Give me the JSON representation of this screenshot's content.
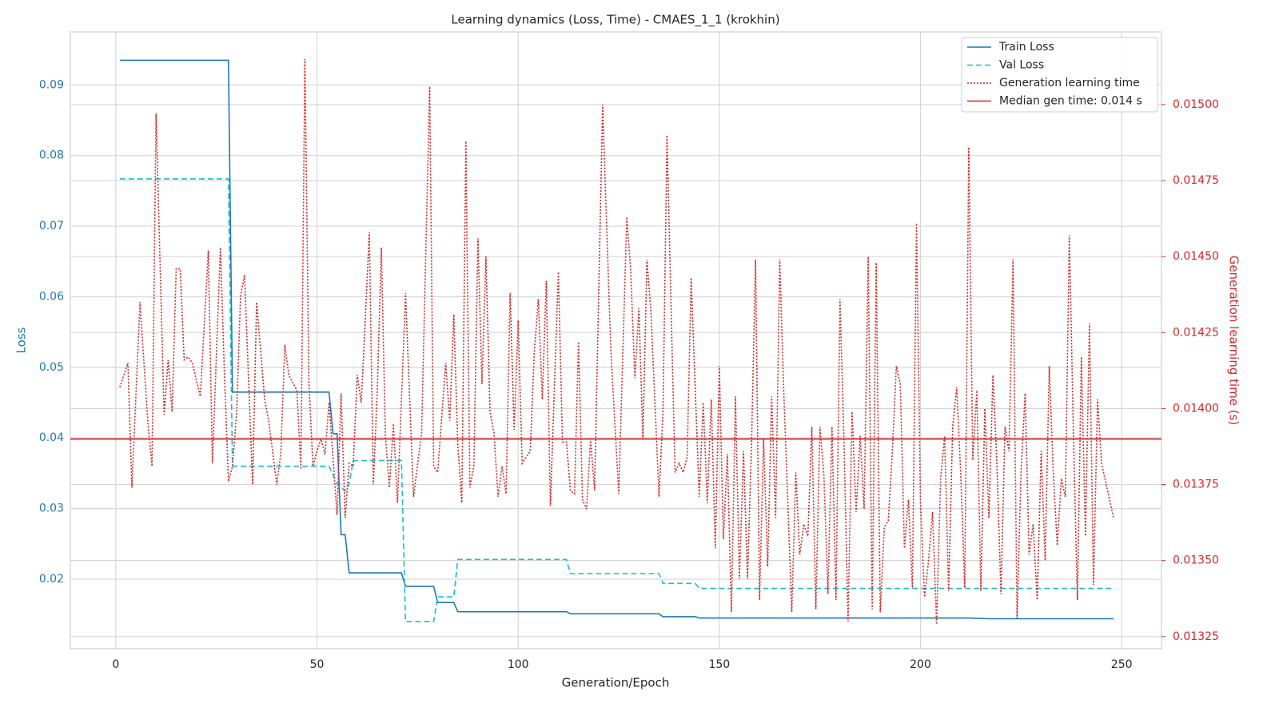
{
  "chart_data": {
    "type": "line",
    "title": "Learning dynamics (Loss, Time) - CMAES_1_1 (krokhin)",
    "x_label": "Generation/Epoch",
    "y_label": "Loss",
    "y2_label": "Generation learning time (s)",
    "xlim": [
      -11.3,
      259.9
    ],
    "xticks": [
      0,
      50,
      100,
      150,
      200,
      250
    ],
    "ylim": [
      0.01016,
      0.0975
    ],
    "yticks": [
      0.02,
      0.03,
      0.04,
      0.05,
      0.06,
      0.07,
      0.08,
      0.09
    ],
    "y2lim": [
      0.01321,
      0.015239
    ],
    "y2ticks": [
      {
        "value": 0.01325,
        "label": "0.01325"
      },
      {
        "value": 0.0135,
        "label": "0.01350"
      },
      0.01375,
      {
        "value": 0.014,
        "label": "0.01400"
      },
      0.01425,
      {
        "value": 0.0145,
        "label": "0.01450"
      },
      0.01475,
      {
        "value": 0.015,
        "label": "0.01500"
      }
    ],
    "y_color": "#1f77b4",
    "y2_color": "#d62728",
    "grid": true,
    "legend": "upper right",
    "series": [
      {
        "name": "Train Loss",
        "color": "#1f77b4",
        "style": "solid",
        "x": [
          1,
          28,
          29,
          53,
          54,
          55,
          56,
          57,
          58,
          71,
          72,
          79,
          80,
          84,
          85,
          112,
          113,
          135,
          136,
          144,
          145,
          212,
          217,
          248
        ],
        "values": [
          0.0935,
          0.0935,
          0.0465,
          0.0465,
          0.0406,
          0.0406,
          0.0263,
          0.0263,
          0.0209,
          0.0209,
          0.019,
          0.019,
          0.0167,
          0.0167,
          0.0154,
          0.0154,
          0.0151,
          0.0151,
          0.0147,
          0.0147,
          0.0145,
          0.0145,
          0.0144,
          0.0144
        ]
      },
      {
        "name": "Val Loss",
        "color": "#17becf",
        "style": "dashed",
        "x": [
          1,
          28,
          29,
          53,
          55,
          57,
          58,
          59,
          71,
          72,
          79,
          80,
          84,
          85,
          112,
          113,
          135,
          136,
          144,
          145,
          248
        ],
        "values": [
          0.0767,
          0.0767,
          0.036,
          0.036,
          0.0335,
          0.0325,
          0.0335,
          0.0368,
          0.0368,
          0.014,
          0.014,
          0.0175,
          0.0175,
          0.0228,
          0.0228,
          0.0208,
          0.0208,
          0.0194,
          0.0194,
          0.0187,
          0.0187
        ]
      },
      {
        "name": "Generation learning time",
        "color": "#d62728",
        "style": "dotted",
        "axis": "y2",
        "x": [
          1,
          3,
          4,
          6,
          8,
          9,
          10,
          12,
          13,
          14,
          15,
          16,
          17,
          18,
          19,
          21,
          23,
          24,
          26,
          27,
          28,
          29,
          30,
          31,
          32,
          34,
          35,
          37,
          38,
          40,
          41,
          42,
          43,
          45,
          46,
          47,
          48,
          49,
          50,
          51,
          52,
          53,
          55,
          56,
          57,
          58,
          59,
          60,
          61,
          62,
          63,
          64,
          65,
          66,
          67,
          68,
          69,
          70,
          72,
          74,
          76,
          78,
          79,
          80,
          82,
          83,
          84,
          85,
          86,
          87,
          88,
          89,
          90,
          91,
          92,
          93,
          94,
          95,
          96,
          97,
          98,
          99,
          100,
          101,
          103,
          104,
          105,
          106,
          107,
          108,
          110,
          111,
          112,
          113,
          114,
          115,
          116,
          117,
          118,
          119,
          121,
          123,
          125,
          127,
          128,
          129,
          130,
          131,
          132,
          133,
          135,
          136,
          137,
          138,
          139,
          140,
          141,
          142,
          143,
          145,
          146,
          147,
          148,
          149,
          150,
          151,
          152,
          153,
          154,
          155,
          156,
          157,
          158,
          159,
          160,
          161,
          162,
          163,
          164,
          165,
          166,
          168,
          169,
          170,
          171,
          172,
          173,
          174,
          175,
          176,
          177,
          178,
          179,
          180,
          181,
          182,
          183,
          184,
          185,
          186,
          187,
          188,
          189,
          190,
          191,
          192,
          193,
          194,
          195,
          196,
          197,
          198,
          199,
          200,
          201,
          202,
          203,
          204,
          205,
          206,
          207,
          208,
          209,
          210,
          211,
          212,
          213,
          214,
          215,
          216,
          217,
          218,
          219,
          220,
          221,
          222,
          223,
          224,
          225,
          226,
          227,
          228,
          229,
          230,
          231,
          232,
          233,
          234,
          235,
          236,
          237,
          238,
          239,
          240,
          241,
          242,
          243,
          244,
          245,
          248
        ],
        "values": [
          0.01407,
          0.01415,
          0.01374,
          0.01435,
          0.01395,
          0.01381,
          0.01497,
          0.01398,
          0.01416,
          0.01399,
          0.01446,
          0.01446,
          0.01416,
          0.01417,
          0.01415,
          0.01404,
          0.01452,
          0.01382,
          0.01453,
          0.01411,
          0.01376,
          0.01381,
          0.01398,
          0.01437,
          0.01444,
          0.01375,
          0.01435,
          0.01403,
          0.01396,
          0.01375,
          0.01385,
          0.01421,
          0.01411,
          0.01406,
          0.0138,
          0.01515,
          0.01408,
          0.01381,
          0.01386,
          0.0139,
          0.01385,
          0.01402,
          0.01365,
          0.01405,
          0.01364,
          0.01382,
          0.01381,
          0.01411,
          0.01402,
          0.01429,
          0.01458,
          0.01375,
          0.01406,
          0.01453,
          0.01391,
          0.01374,
          0.01395,
          0.01369,
          0.01438,
          0.01371,
          0.01392,
          0.01506,
          0.01381,
          0.01379,
          0.01415,
          0.01396,
          0.01431,
          0.01388,
          0.01369,
          0.01488,
          0.01374,
          0.01381,
          0.01456,
          0.01408,
          0.0145,
          0.01399,
          0.01392,
          0.01371,
          0.01381,
          0.01372,
          0.01438,
          0.01393,
          0.01429,
          0.01382,
          0.01386,
          0.01418,
          0.01436,
          0.01403,
          0.01442,
          0.01368,
          0.01445,
          0.01389,
          0.01389,
          0.01373,
          0.01372,
          0.01422,
          0.0137,
          0.01367,
          0.0139,
          0.01373,
          0.015,
          0.0142,
          0.01372,
          0.01463,
          0.01445,
          0.0141,
          0.01433,
          0.0139,
          0.01449,
          0.01432,
          0.01371,
          0.01399,
          0.0149,
          0.01433,
          0.01379,
          0.01382,
          0.01379,
          0.01384,
          0.01443,
          0.01371,
          0.01402,
          0.01369,
          0.01403,
          0.01354,
          0.01414,
          0.01357,
          0.01385,
          0.01333,
          0.01404,
          0.01344,
          0.01386,
          0.01344,
          0.01388,
          0.01449,
          0.01337,
          0.0139,
          0.01348,
          0.01404,
          0.01364,
          0.01449,
          0.01406,
          0.01333,
          0.01379,
          0.01352,
          0.01362,
          0.01358,
          0.01394,
          0.01334,
          0.01394,
          0.01378,
          0.01339,
          0.01394,
          0.01337,
          0.01436,
          0.01388,
          0.0133,
          0.01399,
          0.01366,
          0.01391,
          0.01367,
          0.0145,
          0.01334,
          0.01448,
          0.01333,
          0.01361,
          0.01363,
          0.01386,
          0.01414,
          0.01408,
          0.01354,
          0.0137,
          0.01341,
          0.01461,
          0.01369,
          0.01338,
          0.0135,
          0.01366,
          0.01329,
          0.01377,
          0.01391,
          0.0134,
          0.01394,
          0.01407,
          0.01379,
          0.01341,
          0.01486,
          0.01383,
          0.01406,
          0.0134,
          0.014,
          0.01364,
          0.01411,
          0.01382,
          0.01339,
          0.01394,
          0.01386,
          0.01449,
          0.01331,
          0.01379,
          0.01405,
          0.01352,
          0.01362,
          0.01337,
          0.01386,
          0.0135,
          0.01414,
          0.01379,
          0.01355,
          0.01377,
          0.01371,
          0.01457,
          0.01392,
          0.01337,
          0.01417,
          0.01358,
          0.01428,
          0.01342,
          0.01403,
          0.01382,
          0.01364
        ]
      },
      {
        "name": "Median gen time: 0.014 s",
        "color": "#d62728",
        "style": "hline",
        "axis": "y2",
        "value": 0.0139
      }
    ]
  }
}
